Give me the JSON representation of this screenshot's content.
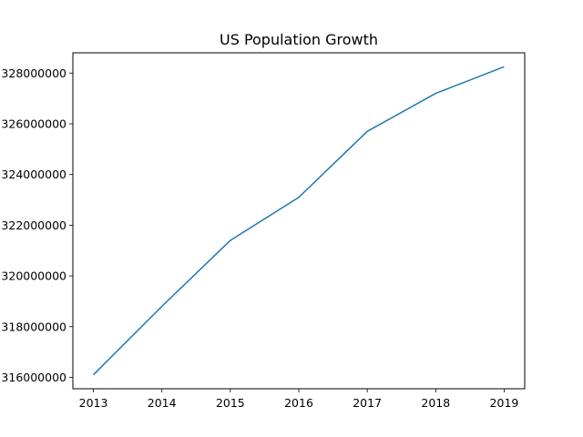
{
  "chart_data": {
    "type": "line",
    "title": "US Population Growth",
    "xlabel": "",
    "ylabel": "",
    "x": [
      2013,
      2014,
      2015,
      2016,
      2017,
      2018,
      2019
    ],
    "series": [
      {
        "values": [
          316100000,
          318800000,
          321400000,
          323100000,
          325700000,
          327200000,
          328250000
        ],
        "color": "#1f77b4"
      }
    ],
    "xlim": [
      2012.7,
      2019.3
    ],
    "ylim": [
      315550000,
      328800000
    ],
    "x_ticks": [
      2013,
      2014,
      2015,
      2016,
      2017,
      2018,
      2019
    ],
    "y_ticks": [
      316000000,
      318000000,
      320000000,
      322000000,
      324000000,
      326000000,
      328000000
    ],
    "x_tick_labels": [
      "2013",
      "2014",
      "2015",
      "2016",
      "2017",
      "2018",
      "2019"
    ],
    "y_tick_labels": [
      "316000000",
      "318000000",
      "320000000",
      "322000000",
      "324000000",
      "326000000",
      "328000000"
    ],
    "grid": false,
    "legend": "none"
  }
}
